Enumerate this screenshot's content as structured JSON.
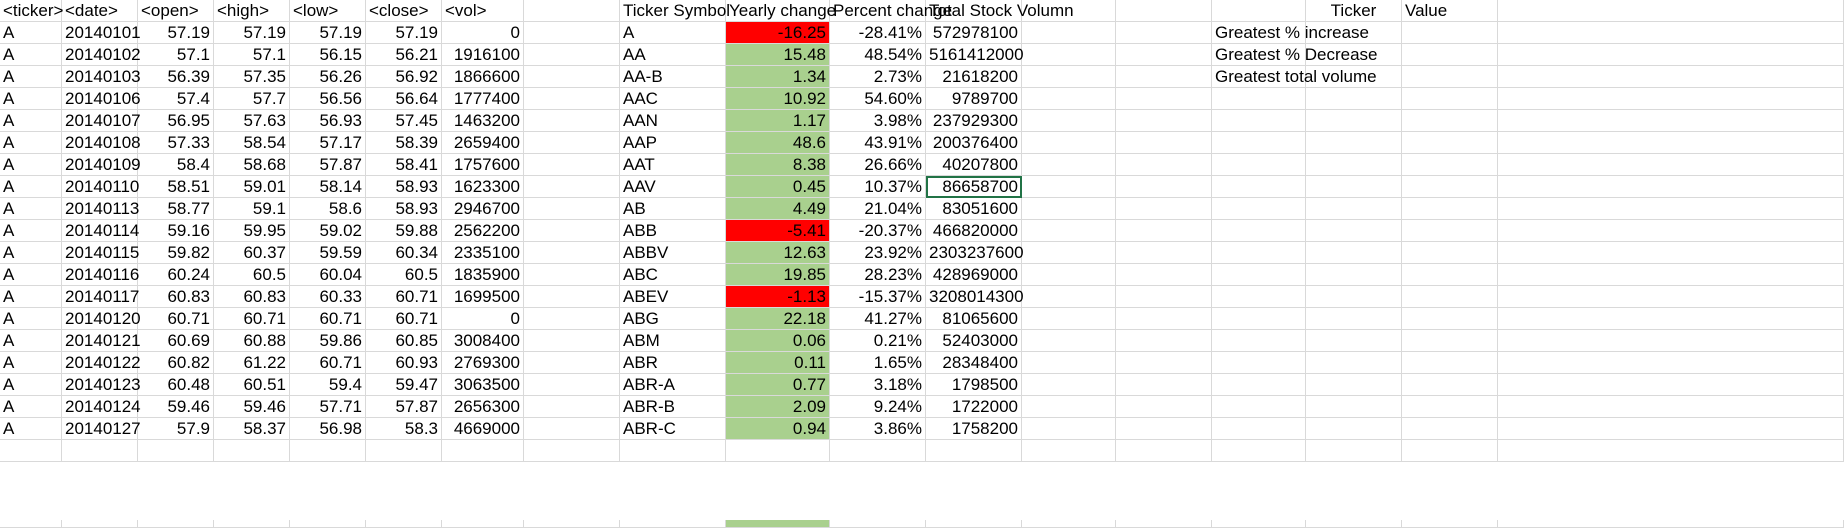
{
  "headers": [
    "<ticker>",
    "<date>",
    "<open>",
    "<high>",
    "<low>",
    "<close>",
    "<vol>",
    "",
    "Ticker Symbol",
    "Yearly change",
    "Percent change",
    "Total Stock Volumn",
    "",
    "",
    "",
    "Ticker",
    "Value"
  ],
  "raw_rows": [
    [
      "A",
      "20140101",
      "57.19",
      "57.19",
      "57.19",
      "57.19",
      "0"
    ],
    [
      "A",
      "20140102",
      "57.1",
      "57.1",
      "56.15",
      "56.21",
      "1916100"
    ],
    [
      "A",
      "20140103",
      "56.39",
      "57.35",
      "56.26",
      "56.92",
      "1866600"
    ],
    [
      "A",
      "20140106",
      "57.4",
      "57.7",
      "56.56",
      "56.64",
      "1777400"
    ],
    [
      "A",
      "20140107",
      "56.95",
      "57.63",
      "56.93",
      "57.45",
      "1463200"
    ],
    [
      "A",
      "20140108",
      "57.33",
      "58.54",
      "57.17",
      "58.39",
      "2659400"
    ],
    [
      "A",
      "20140109",
      "58.4",
      "58.68",
      "57.87",
      "58.41",
      "1757600"
    ],
    [
      "A",
      "20140110",
      "58.51",
      "59.01",
      "58.14",
      "58.93",
      "1623300"
    ],
    [
      "A",
      "20140113",
      "58.77",
      "59.1",
      "58.6",
      "58.93",
      "2946700"
    ],
    [
      "A",
      "20140114",
      "59.16",
      "59.95",
      "59.02",
      "59.88",
      "2562200"
    ],
    [
      "A",
      "20140115",
      "59.82",
      "60.37",
      "59.59",
      "60.34",
      "2335100"
    ],
    [
      "A",
      "20140116",
      "60.24",
      "60.5",
      "60.04",
      "60.5",
      "1835900"
    ],
    [
      "A",
      "20140117",
      "60.83",
      "60.83",
      "60.33",
      "60.71",
      "1699500"
    ],
    [
      "A",
      "20140120",
      "60.71",
      "60.71",
      "60.71",
      "60.71",
      "0"
    ],
    [
      "A",
      "20140121",
      "60.69",
      "60.88",
      "59.86",
      "60.85",
      "3008400"
    ],
    [
      "A",
      "20140122",
      "60.82",
      "61.22",
      "60.71",
      "60.93",
      "2769300"
    ],
    [
      "A",
      "20140123",
      "60.48",
      "60.51",
      "59.4",
      "59.47",
      "3063500"
    ],
    [
      "A",
      "20140124",
      "59.46",
      "59.46",
      "57.71",
      "57.87",
      "2656300"
    ],
    [
      "A",
      "20140127",
      "57.9",
      "58.37",
      "56.98",
      "58.3",
      "4669000"
    ]
  ],
  "summary_rows": [
    [
      "A",
      "-16.25",
      "-28.41%",
      "572978100"
    ],
    [
      "AA",
      "15.48",
      "48.54%",
      "5161412000"
    ],
    [
      "AA-B",
      "1.34",
      "2.73%",
      "21618200"
    ],
    [
      "AAC",
      "10.92",
      "54.60%",
      "9789700"
    ],
    [
      "AAN",
      "1.17",
      "3.98%",
      "237929300"
    ],
    [
      "AAP",
      "48.6",
      "43.91%",
      "200376400"
    ],
    [
      "AAT",
      "8.38",
      "26.66%",
      "40207800"
    ],
    [
      "AAV",
      "0.45",
      "10.37%",
      "86658700"
    ],
    [
      "AB",
      "4.49",
      "21.04%",
      "83051600"
    ],
    [
      "ABB",
      "-5.41",
      "-20.37%",
      "466820000"
    ],
    [
      "ABBV",
      "12.63",
      "23.92%",
      "2303237600"
    ],
    [
      "ABC",
      "19.85",
      "28.23%",
      "428969000"
    ],
    [
      "ABEV",
      "-1.13",
      "-15.37%",
      "3208014300"
    ],
    [
      "ABG",
      "22.18",
      "41.27%",
      "81065600"
    ],
    [
      "ABM",
      "0.06",
      "0.21%",
      "52403000"
    ],
    [
      "ABR",
      "0.11",
      "1.65%",
      "28348400"
    ],
    [
      "ABR-A",
      "0.77",
      "3.18%",
      "1798500"
    ],
    [
      "ABR-B",
      "2.09",
      "9.24%",
      "1722000"
    ],
    [
      "ABR-C",
      "0.94",
      "3.86%",
      "1758200"
    ]
  ],
  "greatest_labels": [
    "Greatest % increase",
    "Greatest % Decrease",
    "Greatest total volume"
  ],
  "status_colors": {
    "positive": "#a9d08e",
    "negative": "#ff0000"
  },
  "selected_cell": "L9"
}
